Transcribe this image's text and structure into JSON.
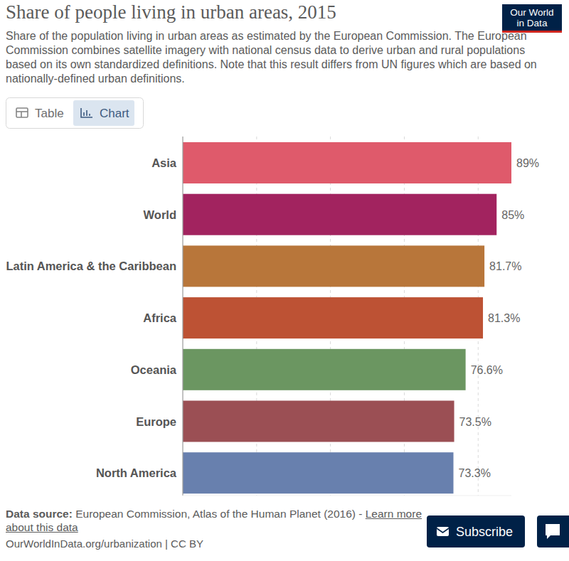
{
  "header": {
    "logo": [
      "Our World",
      "in Data"
    ],
    "tabs": [
      "Table",
      "Chart"
    ]
  },
  "chart_data": {
    "type": "bar",
    "orientation": "horizontal",
    "title": "Share of people living in urban areas, 2015",
    "subtitle": "Share of the population living in urban areas as estimated by the European Commission. The European Commission combines satellite imagery with national census data to derive urban and rural populations based on its own standardized definitions. Note that this result differs from UN figures which are based on nationally-defined urban definitions.",
    "categories": [
      "Asia",
      "World",
      "Latin America & the Caribbean",
      "Africa",
      "Oceania",
      "Europe",
      "North America"
    ],
    "values": [
      89,
      85,
      81.7,
      81.3,
      76.6,
      73.5,
      73.3
    ],
    "value_labels": [
      "89%",
      "85%",
      "81.7%",
      "81.3%",
      "76.6%",
      "73.5%",
      "73.3%"
    ],
    "colors": [
      "#df5a6b",
      "#a2235f",
      "#b8763a",
      "#bd5234",
      "#6b9661",
      "#9b4f54",
      "#6880ae"
    ],
    "xlim": [
      0,
      89
    ],
    "xticks": [
      0,
      20,
      40,
      60,
      80
    ],
    "grid": true,
    "data_labels": true,
    "tick_labels": false
  },
  "footer": {
    "source_label": "Data source:",
    "source": "European Commission, Atlas of the Human Planet (2016) -",
    "link": "Learn more about this data",
    "url": "OurWorldInData.org/urbanization | CC BY",
    "subscribe": "Subscribe"
  }
}
